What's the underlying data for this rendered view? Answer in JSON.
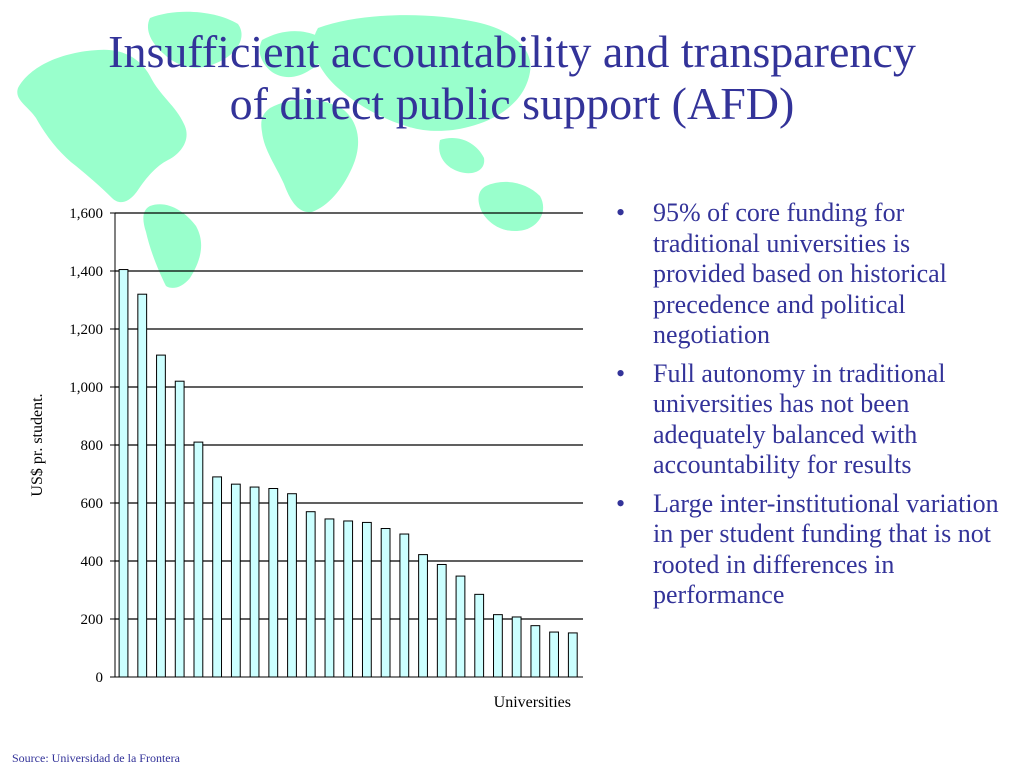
{
  "slide": {
    "title_lines": [
      "Insufficient accountability and transparency",
      "of direct public support (AFD)"
    ],
    "bullets": [
      "95% of core funding for traditional universities is provided based on historical precedence and political negotiation",
      "Full autonomy in traditional universities has not been adequately balanced with accountability for results",
      "Large inter-institutional variation in per student funding that is not rooted in differences in performance"
    ],
    "bullet_marker": "•",
    "source": "Source: Universidad de la Frontera"
  },
  "colors": {
    "title": "#333399",
    "text": "#333399",
    "bar_fill": "#ccffff",
    "bar_stroke": "#000000",
    "map": "#99ffcc"
  },
  "chart_data": {
    "type": "bar",
    "xlabel": "Universities",
    "ylabel": "US$ pr. student.",
    "ylim": [
      0,
      1600
    ],
    "yticks": [
      0,
      200,
      400,
      600,
      800,
      1000,
      1200,
      1400,
      1600
    ],
    "ytick_labels": [
      "0",
      "200",
      "400",
      "600",
      "800",
      "1,000",
      "1,200",
      "1,400",
      "1,600"
    ],
    "grid": true,
    "values": [
      1405,
      1320,
      1110,
      1020,
      810,
      690,
      665,
      655,
      650,
      632,
      570,
      545,
      538,
      533,
      512,
      493,
      422,
      388,
      348,
      285,
      215,
      207,
      177,
      155,
      152
    ]
  }
}
